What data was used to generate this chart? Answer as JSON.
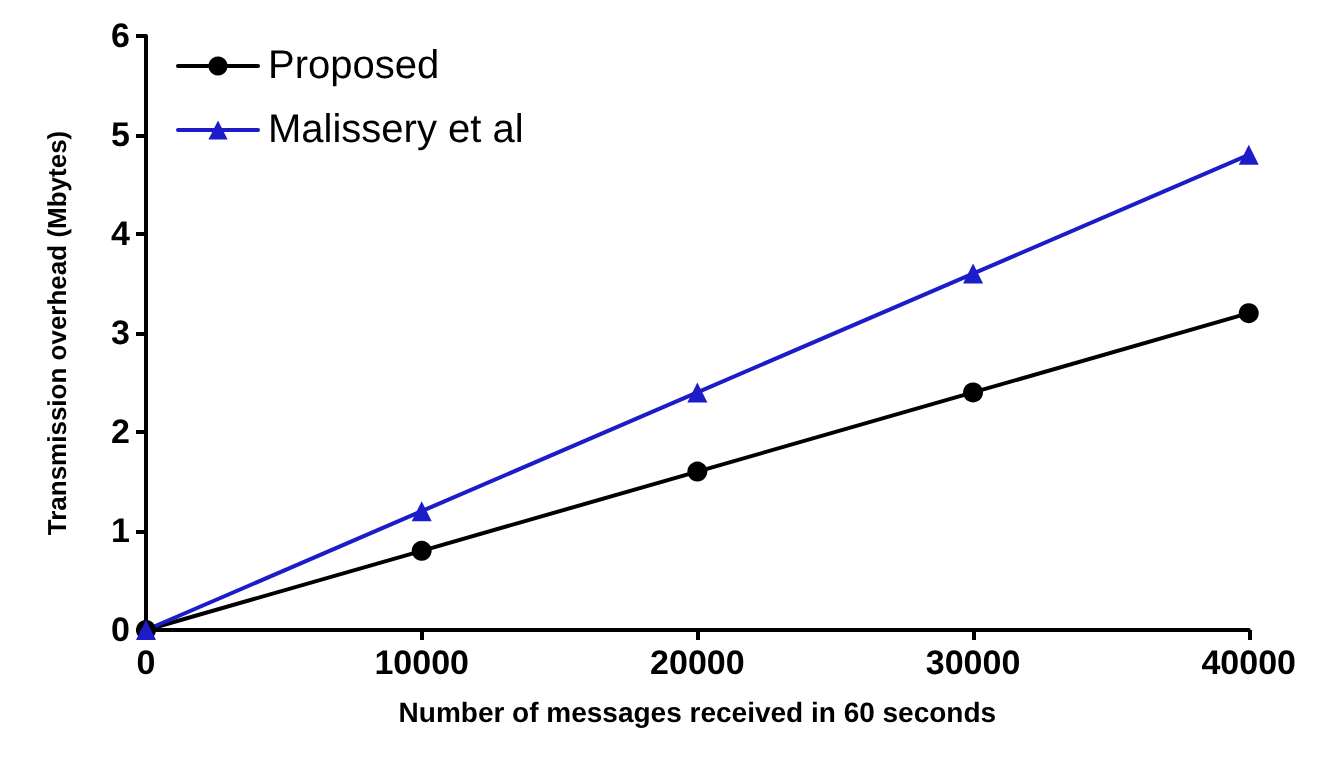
{
  "chart_data": {
    "type": "line",
    "xlabel": "Number of messages received in 60 seconds",
    "ylabel": "Transmission overhead (Mbytes)",
    "x": [
      0,
      10000,
      20000,
      30000,
      40000
    ],
    "series": [
      {
        "name": "Proposed",
        "color": "#000000",
        "marker": "circle",
        "values": [
          0,
          0.8,
          1.6,
          2.4,
          3.2
        ]
      },
      {
        "name": "Malissery et al",
        "color": "#1c1cc8",
        "marker": "triangle",
        "values": [
          0,
          1.2,
          2.4,
          3.6,
          4.8
        ]
      }
    ],
    "xlim": [
      0,
      40000
    ],
    "xticks": [
      0,
      10000,
      20000,
      30000,
      40000
    ],
    "ylim": [
      0,
      6
    ],
    "yticks": [
      0,
      1,
      2,
      3,
      4,
      5,
      6
    ],
    "grid": false,
    "legend": "top left",
    "line_style": "solid"
  }
}
